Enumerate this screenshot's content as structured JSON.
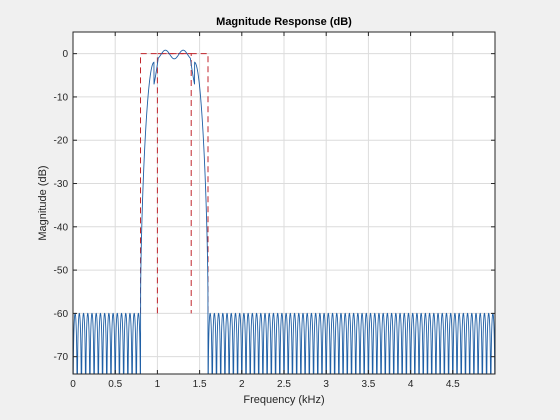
{
  "chart_data": {
    "type": "line",
    "title": "Magnitude Response (dB)",
    "xlabel": "Frequency (kHz)",
    "ylabel": "Magnitude (dB)",
    "xlim": [
      0,
      5
    ],
    "ylim": [
      -74,
      5
    ],
    "xticks": [
      0,
      0.5,
      1,
      1.5,
      2,
      2.5,
      3,
      3.5,
      4,
      4.5
    ],
    "xtick_labels": [
      "0",
      "0.5",
      "1",
      "1.5",
      "2",
      "2.5",
      "3",
      "3.5",
      "4",
      "4.5"
    ],
    "yticks": [
      0,
      -10,
      -20,
      -30,
      -40,
      -50,
      -60,
      -70
    ],
    "ytick_labels": [
      "0",
      "-10",
      "-20",
      "-30",
      "-40",
      "-50",
      "-60",
      "-70"
    ],
    "grid": true,
    "series": [
      {
        "role": "response",
        "color": "#1f5fa5",
        "passband_edges_khz": [
          1.0,
          1.4
        ],
        "transition_edges_khz": [
          0.8,
          1.6
        ],
        "passband_ripple_db": [
          -1.2,
          0.8
        ],
        "stopband_level_db": -60,
        "stopband_null_spacing_khz": 0.05
      },
      {
        "role": "mask",
        "color": "#c0262d",
        "style": "dashed",
        "outer_mask_x": [
          0.8,
          0.8,
          1.6,
          1.6
        ],
        "outer_mask_y": [
          -60,
          0,
          0,
          -60
        ],
        "inner_mask_x": [
          1.0,
          1.0,
          1.4,
          1.4
        ],
        "inner_mask_y": [
          -60,
          0,
          0,
          -60
        ]
      }
    ]
  }
}
